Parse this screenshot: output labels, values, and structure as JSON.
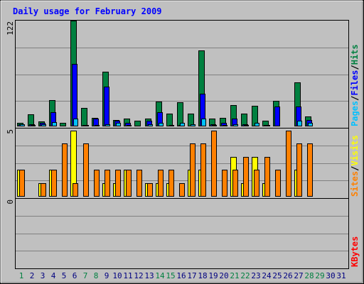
{
  "chart_data": {
    "type": "bar",
    "title": "Daily usage for February 2009",
    "days": [
      "1",
      "2",
      "3",
      "4",
      "5",
      "6",
      "7",
      "8",
      "9",
      "10",
      "11",
      "12",
      "13",
      "14",
      "15",
      "16",
      "17",
      "18",
      "19",
      "20",
      "21",
      "22",
      "23",
      "24",
      "25",
      "26",
      "27",
      "28",
      "29",
      "30",
      "31"
    ],
    "weekend_days": [
      "1",
      "7",
      "8",
      "14",
      "15",
      "21",
      "22",
      "28",
      "29"
    ],
    "colors": {
      "title": "#0000ff",
      "hits": "#008040",
      "files": "#0000ff",
      "pages": "#00c0ff",
      "visits": "#ffff00",
      "sites": "#ff8000",
      "kbytes": "#ff0000",
      "weekday_label": "#000080",
      "weekend_label": "#008040",
      "panel_bg": "#c0c0c0"
    },
    "top_panel": {
      "ymax_label": "122",
      "ymax": 122,
      "legend": [
        "Pages",
        "Files",
        "Hits"
      ],
      "series": [
        {
          "name": "Hits",
          "values": [
            3,
            13,
            5,
            30,
            3,
            122,
            21,
            9,
            63,
            7,
            8,
            6,
            8,
            28,
            14,
            27,
            14,
            87,
            8,
            9,
            24,
            14,
            23,
            6,
            29,
            0,
            50,
            11,
            0,
            0,
            0
          ]
        },
        {
          "name": "Files",
          "values": [
            2,
            2,
            3,
            16,
            0,
            72,
            1,
            8,
            45,
            6,
            3,
            0,
            6,
            16,
            0,
            1,
            0,
            37,
            2,
            3,
            8,
            2,
            0,
            1,
            22,
            0,
            22,
            7,
            0,
            0,
            0
          ]
        },
        {
          "name": "Pages",
          "values": [
            2,
            1,
            2,
            4,
            0,
            8,
            1,
            1,
            2,
            3,
            1,
            0,
            2,
            3,
            1,
            3,
            2,
            8,
            1,
            1,
            2,
            1,
            3,
            1,
            0,
            0,
            6,
            3,
            0,
            0,
            0
          ]
        }
      ]
    },
    "middle_panel": {
      "ymax_label": "5",
      "ymax": 5,
      "legend": [
        "Sites",
        "Visits"
      ],
      "series": [
        {
          "name": "Visits",
          "values": [
            2,
            0,
            1,
            2,
            0,
            5,
            0,
            0,
            1,
            1,
            2,
            0,
            1,
            1,
            1,
            0,
            2,
            2,
            0,
            0,
            3,
            1,
            3,
            1,
            0,
            0,
            2,
            0,
            0,
            0,
            0
          ]
        },
        {
          "name": "Sites",
          "values": [
            2,
            0,
            1,
            2,
            4,
            1,
            4,
            2,
            2,
            2,
            2,
            2,
            1,
            2,
            2,
            1,
            4,
            4,
            5,
            2,
            2,
            3,
            2,
            3,
            2,
            5,
            4,
            4,
            0,
            0,
            0
          ]
        }
      ]
    },
    "bottom_panel": {
      "ymax_label": "0",
      "legend": [
        "KBytes"
      ],
      "series": [
        {
          "name": "KBytes",
          "values": [
            0,
            0,
            0,
            0,
            0,
            0,
            0,
            0,
            0,
            0,
            0,
            0,
            0,
            0,
            0,
            0,
            0,
            0,
            0,
            0,
            0,
            0,
            0,
            0,
            0,
            0,
            0,
            0,
            0,
            0,
            0
          ]
        }
      ]
    }
  }
}
